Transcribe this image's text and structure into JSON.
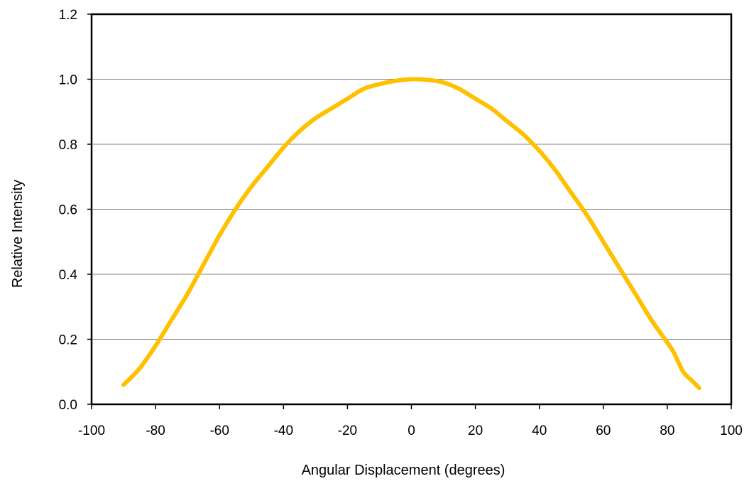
{
  "chart_data": {
    "type": "line",
    "title": "",
    "xlabel": "Angular Displacement (degrees)",
    "ylabel": "Relative Intensity",
    "xlim": [
      -100,
      100
    ],
    "ylim": [
      0,
      1.2
    ],
    "x_ticks": [
      -100,
      -80,
      -60,
      -40,
      -20,
      0,
      20,
      40,
      60,
      80,
      100
    ],
    "x_tick_labels": [
      "-100",
      "-80",
      "-60",
      "-40",
      "-20",
      "0",
      "20",
      "40",
      "60",
      "80",
      "100"
    ],
    "y_ticks": [
      0,
      0.2,
      0.4,
      0.6,
      0.8,
      1.0,
      1.2
    ],
    "y_tick_labels": [
      "0.0",
      "0.2",
      "0.4",
      "0.6",
      "0.8",
      "1.0",
      "1.2"
    ],
    "grid": "horizontal",
    "legend": "none",
    "series": [
      {
        "color": "#FFC000",
        "x": [
          -90,
          -85,
          -80,
          -75,
          -70,
          -65,
          -60,
          -55,
          -50,
          -45,
          -40,
          -35,
          -30,
          -25,
          -20,
          -15,
          -10,
          -5,
          0,
          5,
          10,
          15,
          20,
          25,
          30,
          35,
          40,
          45,
          50,
          55,
          60,
          65,
          70,
          75,
          80,
          82,
          85,
          88,
          90
        ],
        "y": [
          0.06,
          0.11,
          0.18,
          0.26,
          0.34,
          0.43,
          0.52,
          0.6,
          0.67,
          0.73,
          0.79,
          0.84,
          0.88,
          0.91,
          0.94,
          0.97,
          0.985,
          0.995,
          1.0,
          0.998,
          0.99,
          0.97,
          0.94,
          0.91,
          0.87,
          0.83,
          0.78,
          0.72,
          0.65,
          0.58,
          0.5,
          0.42,
          0.34,
          0.26,
          0.19,
          0.16,
          0.1,
          0.07,
          0.05
        ]
      }
    ]
  }
}
